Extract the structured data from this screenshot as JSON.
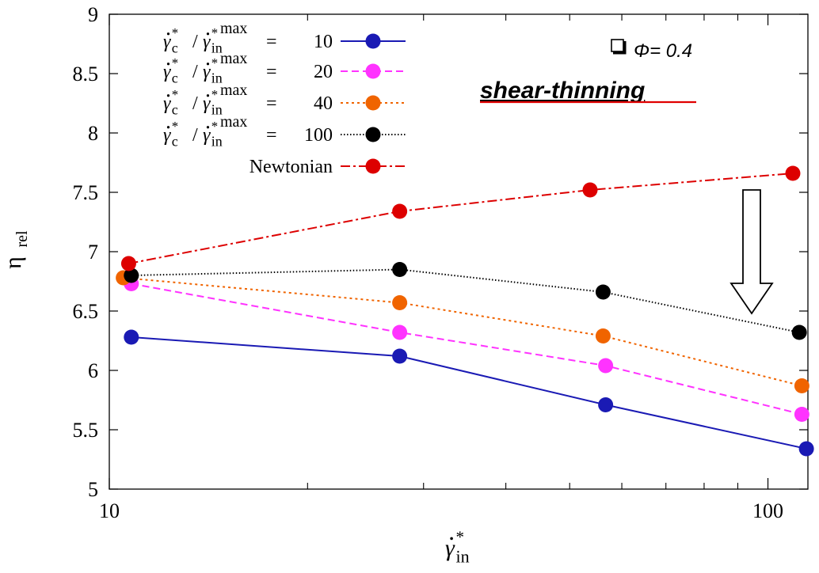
{
  "chart_data": {
    "type": "line",
    "x_scale": "log",
    "xlim": [
      10,
      115
    ],
    "ylim": [
      5,
      9
    ],
    "yticks": [
      5,
      5.5,
      6,
      6.5,
      7,
      7.5,
      8,
      8.5,
      9
    ],
    "ytick_labels": [
      "5",
      "5.5",
      "6",
      "6.5",
      "7",
      "7.5",
      "8",
      "8.5",
      "9"
    ],
    "xticks_labeled": [
      10,
      100
    ],
    "xtick_labels": [
      "10",
      "100"
    ],
    "xticks_minor": [
      20,
      30,
      40,
      50,
      60,
      70,
      80,
      90
    ],
    "xlabel": "γ̇*in",
    "ylabel": "ηrel",
    "grid": false,
    "legend_position": "top-left",
    "series": [
      {
        "name": "γ̇*c / γ̇*in max = 10",
        "legend_value": "10",
        "color": "#1a1ab4",
        "dash": "solid",
        "x": [
          10.8,
          27.6,
          56.7,
          114.4
        ],
        "y": [
          6.28,
          6.12,
          5.71,
          5.34
        ]
      },
      {
        "name": "γ̇*c / γ̇*in max = 20",
        "legend_value": "20",
        "color": "#ff33ff",
        "dash": "dashed",
        "x": [
          10.8,
          27.6,
          56.7,
          112.6
        ],
        "y": [
          6.73,
          6.32,
          6.04,
          5.63
        ]
      },
      {
        "name": "γ̇*c / γ̇*in max = 40",
        "legend_value": "40",
        "color": "#f06400",
        "dash": "dotted",
        "x": [
          10.5,
          27.6,
          56.2,
          112.6
        ],
        "y": [
          6.78,
          6.57,
          6.29,
          5.87
        ]
      },
      {
        "name": "γ̇*c / γ̇*in max = 100",
        "legend_value": "100",
        "color": "#000000",
        "dash": "fine-dotted",
        "x": [
          10.8,
          27.6,
          56.2,
          111.6
        ],
        "y": [
          6.8,
          6.85,
          6.66,
          6.32
        ]
      },
      {
        "name": "Newtonian",
        "legend_value": "",
        "color": "#dd0000",
        "dash": "dash-dot",
        "x": [
          10.7,
          27.6,
          53.7,
          109.1
        ],
        "y": [
          6.9,
          7.34,
          7.52,
          7.66
        ]
      }
    ],
    "annotations": {
      "phi_label": "Φ= 0.4",
      "shear_label": "shear-thinning",
      "arrow": "downward"
    }
  }
}
